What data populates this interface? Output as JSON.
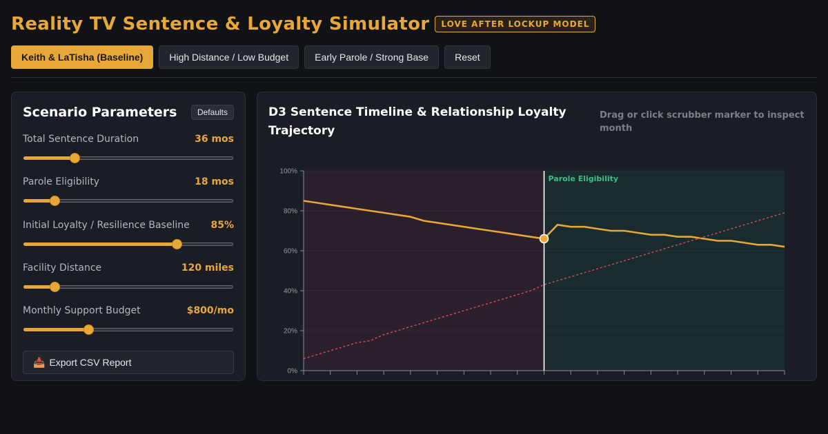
{
  "header": {
    "title": "Reality TV Sentence & Loyalty Simulator",
    "badge": "LOVE AFTER LOCKUP MODEL"
  },
  "presets": [
    {
      "label": "Keith & LaTisha (Baseline)",
      "active": true
    },
    {
      "label": "High Distance / Low Budget",
      "active": false
    },
    {
      "label": "Early Parole / Strong Base",
      "active": false
    },
    {
      "label": "Reset",
      "active": false
    }
  ],
  "params_panel": {
    "title": "Scenario Parameters",
    "defaults_label": "Defaults",
    "params": [
      {
        "label": "Total Sentence Duration",
        "value": "36 mos",
        "fraction": 0.23
      },
      {
        "label": "Parole Eligibility",
        "value": "18 mos",
        "fraction": 0.13
      },
      {
        "label": "Initial Loyalty / Resilience Baseline",
        "value": "85%",
        "fraction": 0.74
      },
      {
        "label": "Facility Distance",
        "value": "120 miles",
        "fraction": 0.13
      },
      {
        "label": "Monthly Support Budget",
        "value": "$800/mo",
        "fraction": 0.3
      }
    ],
    "export_label": "Export CSV Report",
    "export_icon": "inbox-tray-icon"
  },
  "chart_panel": {
    "title": "D3 Sentence Timeline & Relationship Loyalty Trajectory",
    "hint": "Drag or click scrubber marker to inspect month"
  },
  "colors": {
    "accent": "#e8a838",
    "risk_line": "#d9505e",
    "pre_parole_bg": "#2b1f2b",
    "post_parole_bg": "#1a2b2d",
    "parole_label": "#3dbf8a"
  },
  "chart_data": {
    "type": "line",
    "x": [
      0,
      1,
      2,
      3,
      4,
      5,
      6,
      7,
      8,
      9,
      10,
      11,
      12,
      13,
      14,
      15,
      16,
      17,
      18,
      19,
      20,
      21,
      22,
      23,
      24,
      25,
      26,
      27,
      28,
      29,
      30,
      31,
      32,
      33,
      34,
      35,
      36
    ],
    "xlim": [
      0,
      36
    ],
    "ylim": [
      0,
      100
    ],
    "y_ticks": [
      "0%",
      "20%",
      "40%",
      "60%",
      "80%",
      "100%"
    ],
    "parole_month": 18,
    "parole_label": "Parole Eligibility",
    "scrubber_month": 18,
    "series": [
      {
        "style": "solid",
        "color": "#e8a838",
        "values": [
          85,
          84,
          83,
          82,
          81,
          80,
          79,
          78,
          77,
          75,
          74,
          73,
          72,
          71,
          70,
          69,
          68,
          67,
          66,
          73,
          72,
          72,
          71,
          70,
          70,
          69,
          68,
          68,
          67,
          67,
          66,
          65,
          65,
          64,
          63,
          63,
          62
        ]
      },
      {
        "style": "dashed",
        "color": "#d9505e",
        "values": [
          6,
          8,
          10,
          12,
          14,
          15,
          18,
          20,
          22,
          24,
          26,
          28,
          30,
          32,
          34,
          36,
          38,
          40,
          43,
          45,
          47,
          49,
          51,
          53,
          55,
          57,
          59,
          61,
          63,
          65,
          67,
          69,
          71,
          73,
          75,
          77,
          79
        ]
      }
    ]
  }
}
